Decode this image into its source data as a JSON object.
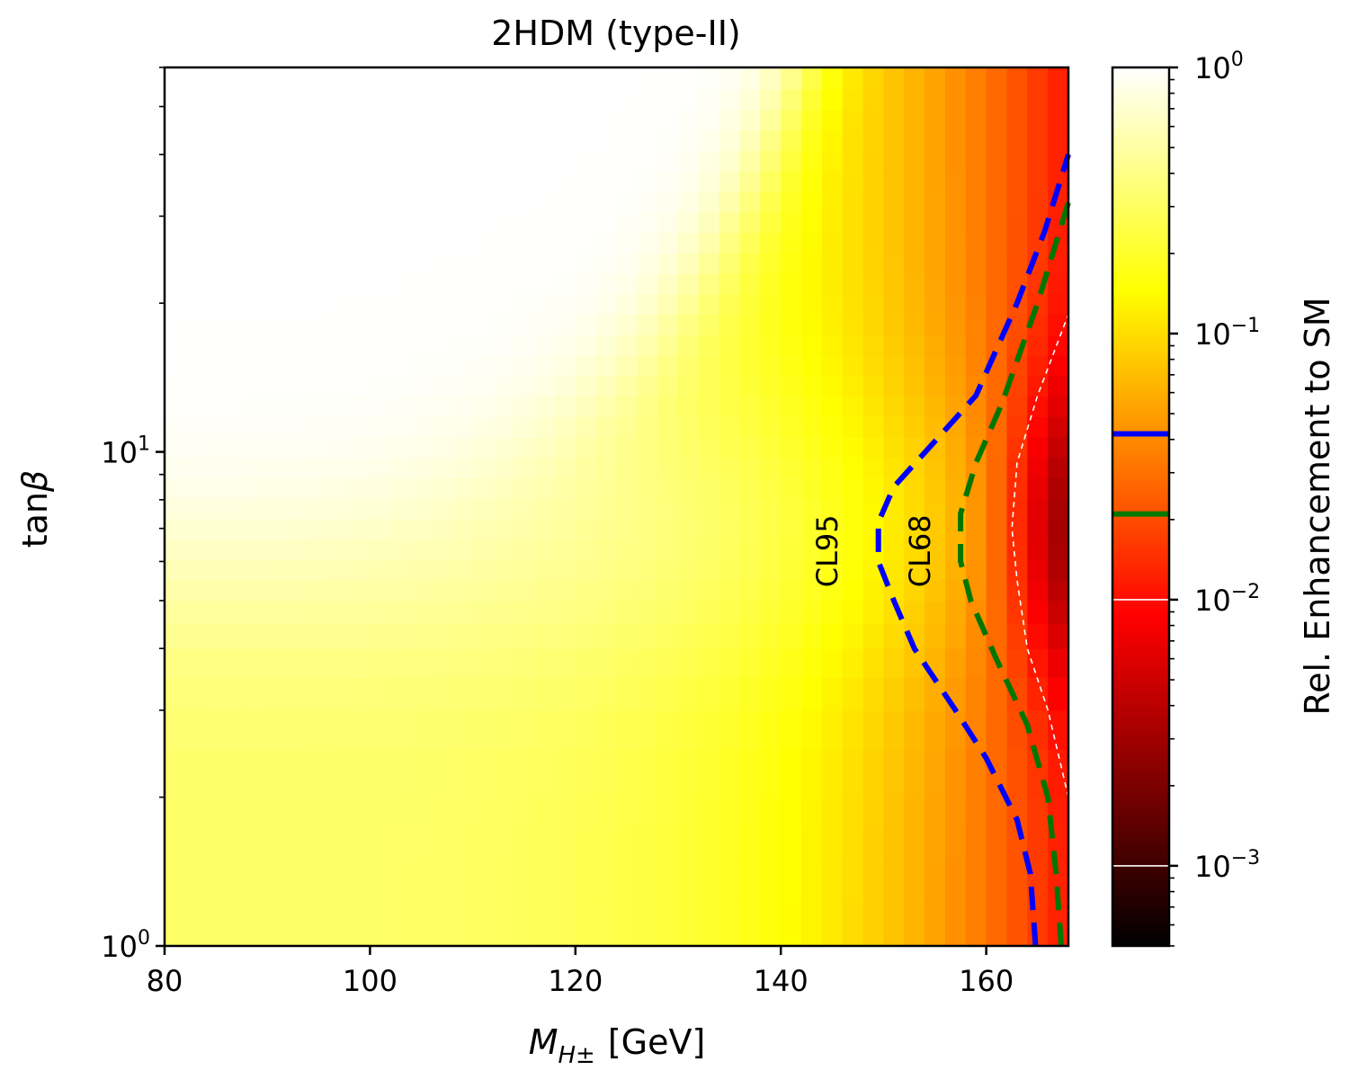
{
  "chart_data": {
    "type": "heatmap",
    "title": "2HDM (type-II)",
    "xlabel": {
      "main": "M",
      "sub": "H±",
      "unit": "[GeV]"
    },
    "ylabel": {
      "main": "tan",
      "greek": "β"
    },
    "xlim": [
      80,
      168
    ],
    "ylim": [
      1,
      60
    ],
    "yscale": "log",
    "x_ticks": [
      80,
      100,
      120,
      140,
      160
    ],
    "x_tick_labels": [
      "80",
      "100",
      "120",
      "140",
      "160"
    ],
    "y_ticks": [
      1,
      10
    ],
    "y_tick_labels": [
      {
        "base": "10",
        "exp": "0"
      },
      {
        "base": "10",
        "exp": "1"
      }
    ],
    "colorbar": {
      "label": "Rel. Enhancement to SM",
      "scale": "log",
      "range": [
        0.0005,
        1
      ],
      "colormap": "hot",
      "ticks": [
        0.001,
        0.01,
        0.1,
        1
      ],
      "tick_labels": [
        {
          "base": "10",
          "exp": "−3"
        },
        {
          "base": "10",
          "exp": "−2"
        },
        {
          "base": "10",
          "exp": "−1"
        },
        {
          "base": "10",
          "exp": "0"
        }
      ],
      "level_marks": [
        {
          "value": 0.042,
          "color": "#0000ff"
        },
        {
          "value": 0.021,
          "color": "#007700"
        },
        {
          "value": 0.01,
          "color": "#ffffff"
        },
        {
          "value": 0.001,
          "color": "#ffffff"
        }
      ]
    },
    "grid": false,
    "contours": [
      {
        "label": "CL95",
        "color": "#0000ff",
        "style": "dashed",
        "points": [
          [
            164.8,
            1.0
          ],
          [
            164.3,
            1.4
          ],
          [
            163.0,
            1.8
          ],
          [
            160.0,
            2.4
          ],
          [
            157.0,
            3.0
          ],
          [
            153.0,
            4.0
          ],
          [
            151.0,
            5.0
          ],
          [
            149.5,
            6.0
          ],
          [
            149.5,
            7.2
          ],
          [
            151.0,
            8.5
          ],
          [
            155.0,
            10.5
          ],
          [
            159.0,
            13.0
          ],
          [
            163.0,
            20.0
          ],
          [
            165.7,
            28.0
          ],
          [
            168.0,
            40.0
          ]
        ],
        "label_at": [
          145.5,
          6.3
        ]
      },
      {
        "label": "CL68",
        "color": "#007700",
        "style": "dashed",
        "points": [
          [
            167.3,
            1.0
          ],
          [
            166.8,
            1.4
          ],
          [
            166.0,
            2.0
          ],
          [
            164.0,
            2.8
          ],
          [
            161.0,
            3.8
          ],
          [
            158.5,
            5.0
          ],
          [
            157.5,
            6.0
          ],
          [
            157.5,
            7.5
          ],
          [
            159.0,
            9.5
          ],
          [
            161.5,
            12.5
          ],
          [
            165.0,
            20.0
          ],
          [
            168.0,
            32.0
          ]
        ],
        "label_at": [
          154.5,
          6.3
        ]
      },
      {
        "label": "",
        "color": "#ffffff",
        "style": "dashed-thin",
        "points": [
          [
            168.0,
            2.0
          ],
          [
            166.0,
            3.0
          ],
          [
            164.0,
            4.0
          ],
          [
            163.0,
            5.5
          ],
          [
            162.5,
            7.0
          ],
          [
            163.0,
            9.5
          ],
          [
            165.0,
            13.0
          ],
          [
            168.0,
            19.0
          ]
        ]
      }
    ]
  }
}
